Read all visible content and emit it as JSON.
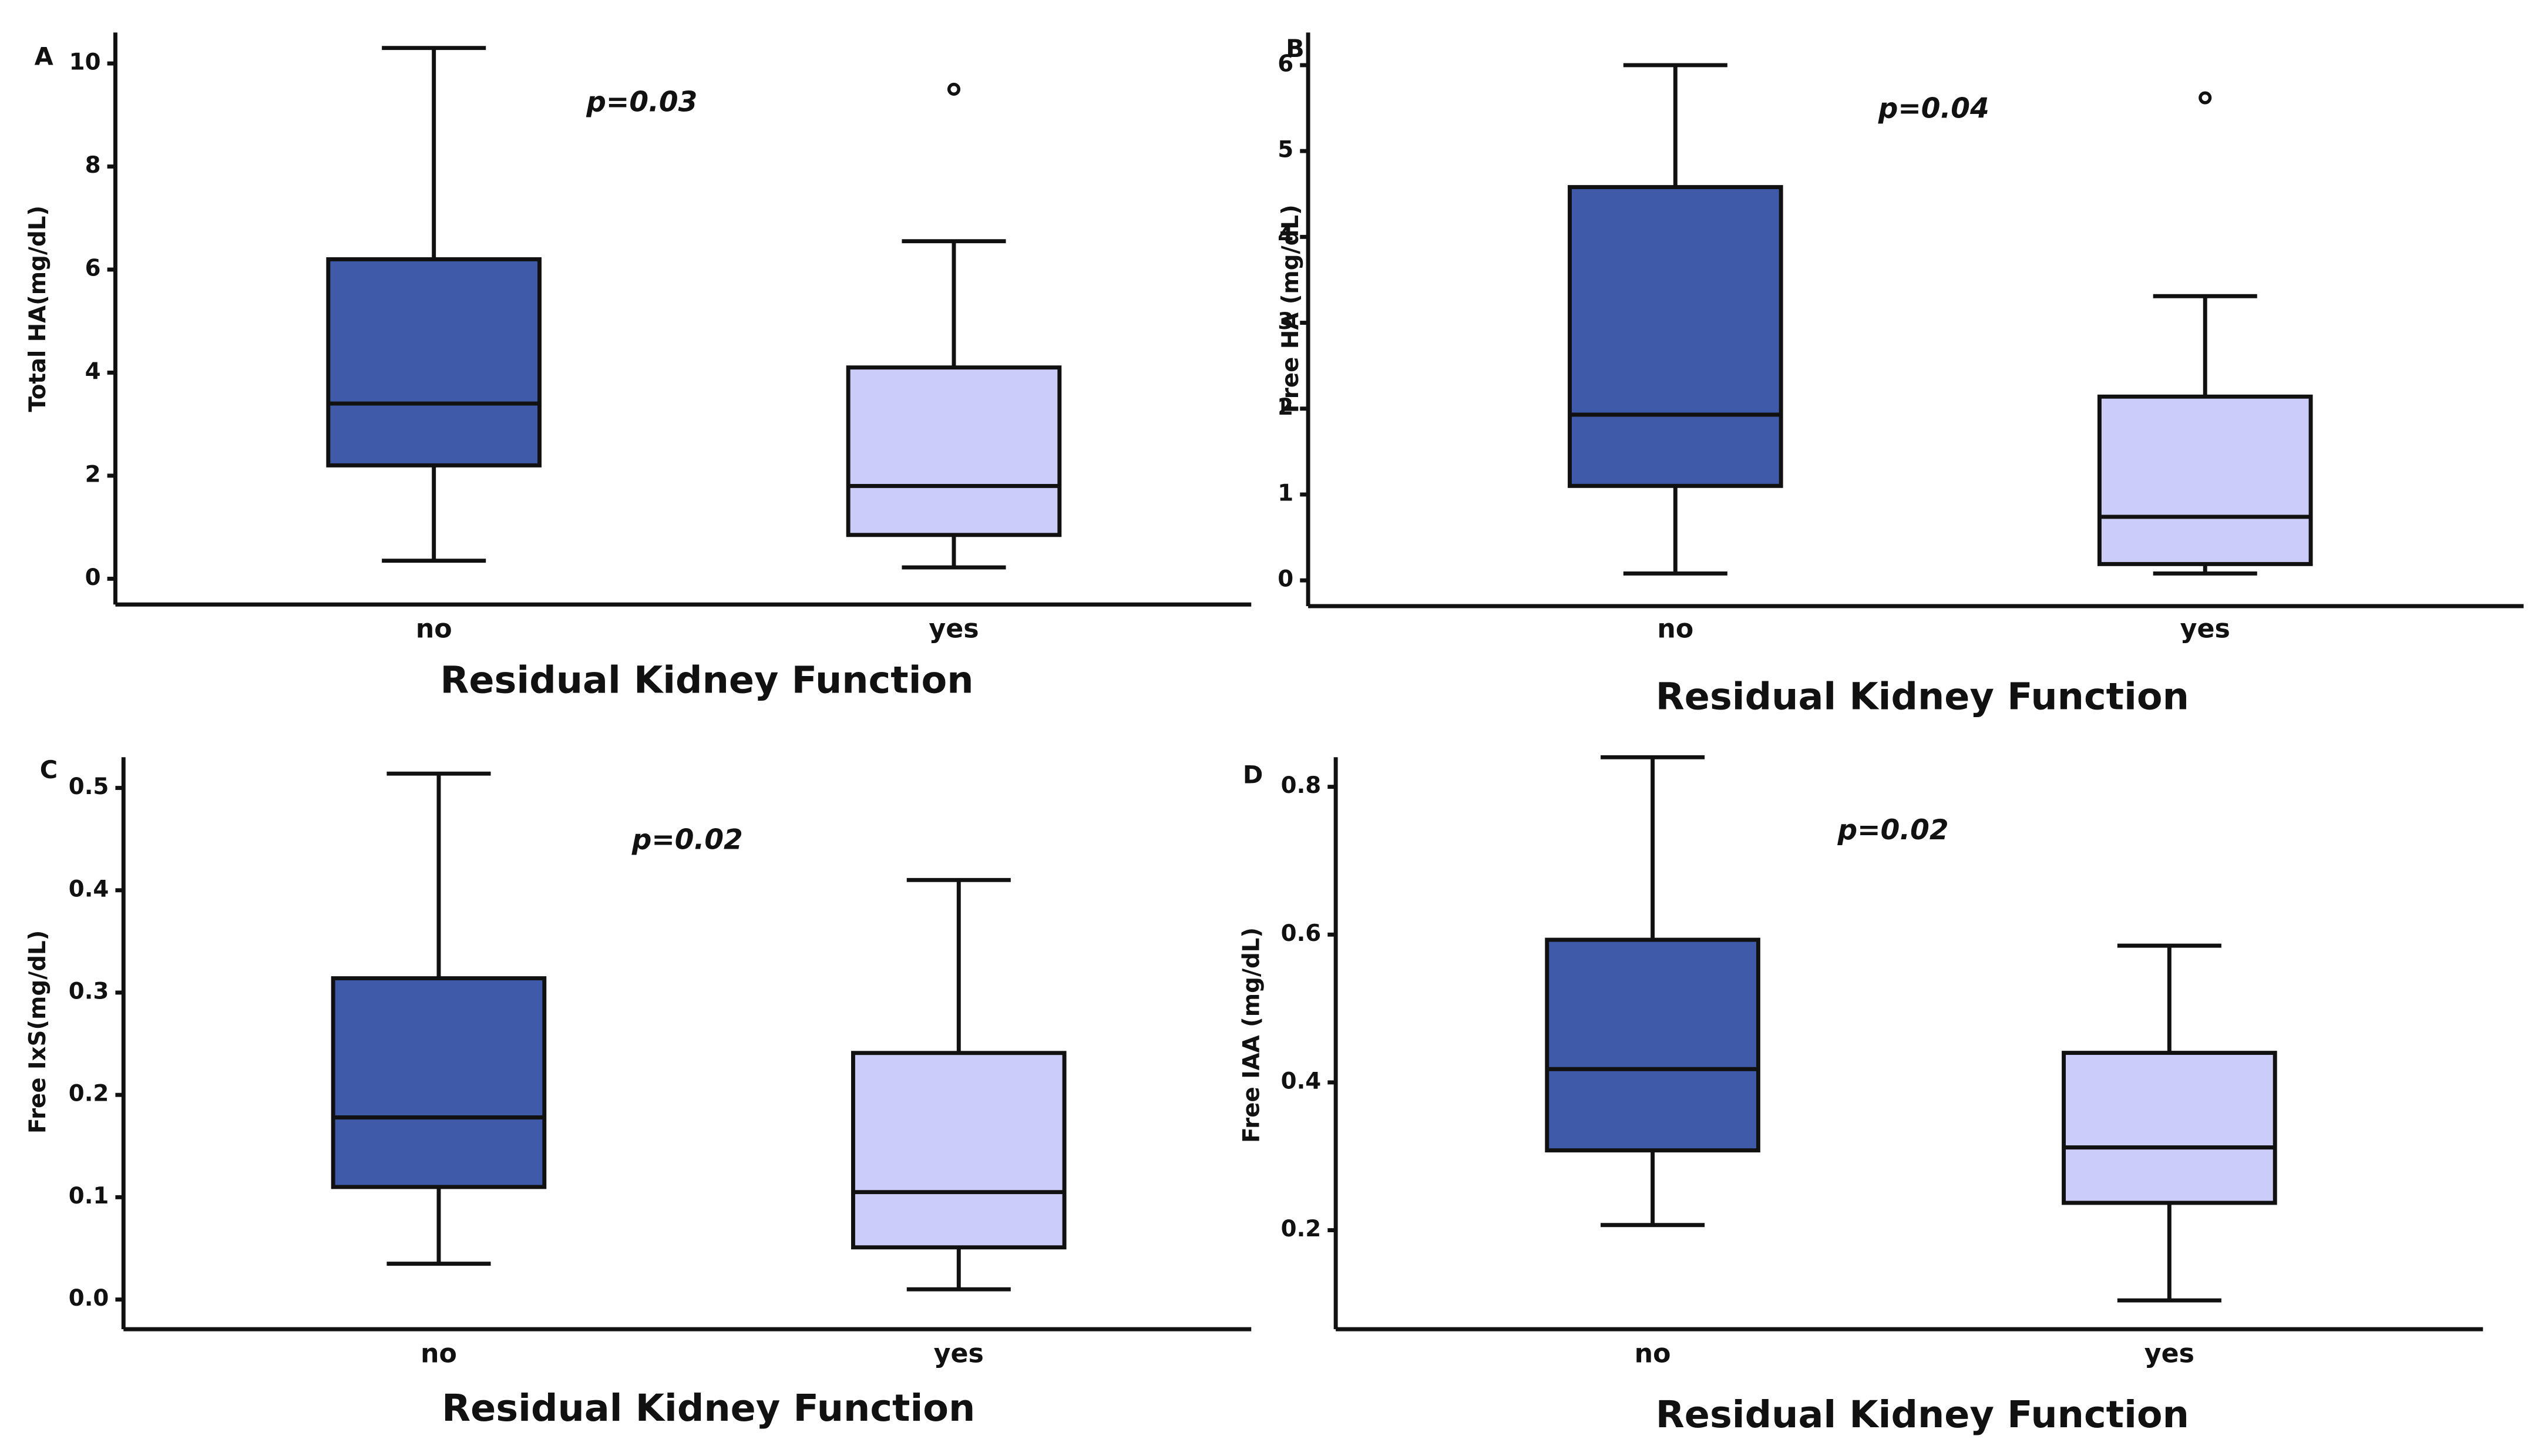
{
  "chart_data": [
    {
      "type": "box",
      "panel_label": "A",
      "ylabel": "Total HA(mg/dL)",
      "xlabel": "Residual Kidney Function",
      "annotation": "p=0.03",
      "categories": [
        "no",
        "yes"
      ],
      "colors": [
        "#3f5aa8",
        "#ccccf8"
      ],
      "whisker_low": [
        0.35,
        0.22
      ],
      "q1": [
        2.2,
        0.85
      ],
      "median": [
        3.4,
        1.8
      ],
      "q3": [
        6.2,
        4.1
      ],
      "whisker_high": [
        10.3,
        6.55
      ],
      "outliers": [
        [],
        [
          9.5
        ]
      ],
      "ylim": [
        -0.5,
        10.6
      ],
      "yticks": [
        0,
        2,
        4,
        6,
        8,
        10
      ]
    },
    {
      "type": "box",
      "panel_label": "B",
      "ylabel": "Free HA (mg/dL)",
      "xlabel": "Residual Kidney Function",
      "annotation": "p=0.04",
      "categories": [
        "no",
        "yes"
      ],
      "colors": [
        "#3f5aa8",
        "#ccccf8"
      ],
      "whisker_low": [
        0.08,
        0.08
      ],
      "q1": [
        1.1,
        0.19
      ],
      "median": [
        1.93,
        0.74
      ],
      "q3": [
        4.58,
        2.14
      ],
      "whisker_high": [
        6.0,
        3.31
      ],
      "outliers": [
        [],
        [
          5.62
        ]
      ],
      "ylim": [
        -0.3,
        6.38
      ],
      "yticks": [
        0,
        1,
        2,
        3,
        4,
        5,
        6
      ]
    },
    {
      "type": "box",
      "panel_label": "C",
      "ylabel": "Free IxS(mg/dL)",
      "xlabel": "Residual Kidney Function",
      "annotation": "p=0.02",
      "categories": [
        "no",
        "yes"
      ],
      "colors": [
        "#3f5aa8",
        "#ccccf8"
      ],
      "whisker_low": [
        0.035,
        0.01
      ],
      "q1": [
        0.11,
        0.051
      ],
      "median": [
        0.178,
        0.105
      ],
      "q3": [
        0.314,
        0.241
      ],
      "whisker_high": [
        0.514,
        0.41
      ],
      "outliers": [
        [],
        []
      ],
      "ylim": [
        -0.029,
        0.53
      ],
      "yticks": [
        {
          "value": 0,
          "label": "0.0"
        },
        0.1,
        0.2,
        0.3,
        0.4,
        0.5
      ]
    },
    {
      "type": "box",
      "panel_label": "D",
      "ylabel": "Free IAA (mg/dL)",
      "xlabel": "Residual Kidney Function",
      "annotation": "p=0.02",
      "categories": [
        "no",
        "yes"
      ],
      "colors": [
        "#3f5aa8",
        "#ccccf8"
      ],
      "whisker_low": [
        0.207,
        0.105
      ],
      "q1": [
        0.308,
        0.237
      ],
      "median": [
        0.418,
        0.312
      ],
      "q3": [
        0.593,
        0.44
      ],
      "whisker_high": [
        0.84,
        0.585
      ],
      "outliers": [
        [],
        []
      ],
      "ylim": [
        0.066,
        0.84
      ],
      "yticks": [
        0.2,
        0.4,
        0.6,
        0.8
      ]
    }
  ]
}
